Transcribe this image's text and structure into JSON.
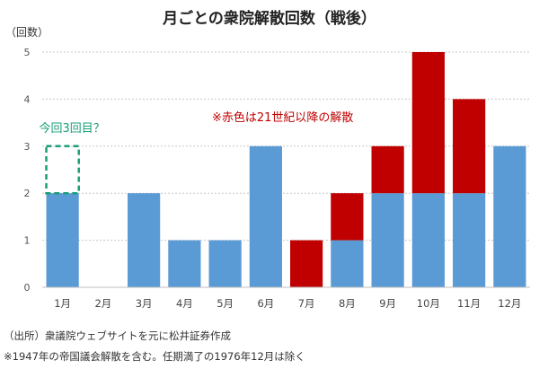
{
  "chart_data": {
    "type": "bar",
    "stacked": true,
    "title": "月ごとの衆院解散回数（戦後）",
    "ylabel": "（回数）",
    "ylim": [
      0,
      5
    ],
    "yticks": [
      0,
      1,
      2,
      3,
      4,
      5
    ],
    "grid": "horizontal dotted",
    "categories": [
      "1月",
      "2月",
      "3月",
      "4月",
      "5月",
      "6月",
      "7月",
      "8月",
      "9月",
      "10月",
      "11月",
      "12月"
    ],
    "series": [
      {
        "color": "#5b9bd5",
        "values": [
          2,
          0,
          2,
          1,
          1,
          3,
          0,
          1,
          2,
          2,
          2,
          3
        ]
      },
      {
        "color": "#c00000",
        "values": [
          0,
          0,
          0,
          0,
          0,
          0,
          1,
          1,
          1,
          3,
          2,
          0
        ]
      }
    ],
    "annotations": [
      {
        "text": "今回3回目？",
        "color": "#1a9e78",
        "category": "1月",
        "dashed_box_range": [
          2,
          3
        ]
      },
      {
        "text": "※赤色は21世紀以降の解散",
        "color": "#c00000"
      }
    ]
  },
  "notes": {
    "source": "（出所）衆議院ウェブサイトを元に松井証券作成",
    "footnote": "※1947年の帝国議会解散を含む。任期満了の1976年12月は除く"
  }
}
